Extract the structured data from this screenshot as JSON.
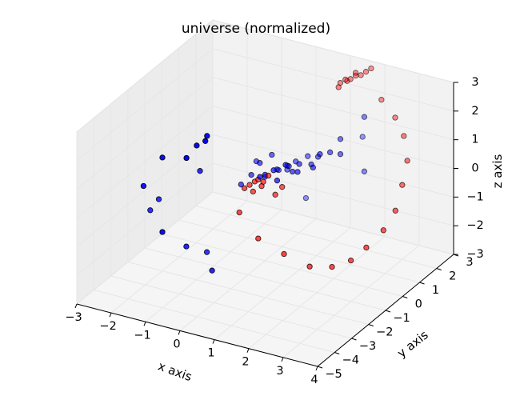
{
  "chart_data": {
    "type": "scatter",
    "projection": "3d",
    "title": "universe (normalized)",
    "xlabel": "x axis",
    "ylabel": "y axis",
    "zlabel": "z axis",
    "xlim": [
      -3,
      4
    ],
    "ylim": [
      -5,
      3
    ],
    "zlim": [
      -3,
      3
    ],
    "xticks": [
      "−3",
      "−2",
      "−1",
      "0",
      "1",
      "2",
      "3",
      "4"
    ],
    "yticks": [
      "−5",
      "−4",
      "−3",
      "−2",
      "−1",
      "0",
      "1",
      "2",
      "3"
    ],
    "zticks": [
      "−3",
      "−2",
      "−1",
      "0",
      "1",
      "2",
      "3"
    ],
    "grid": true,
    "series": [
      {
        "color": "#0000ff",
        "points": [
          [
            0.0,
            0.0,
            0.0
          ],
          [
            0.2,
            0.3,
            0.1
          ],
          [
            -0.1,
            0.2,
            -0.2
          ],
          [
            0.3,
            -0.1,
            0.3
          ],
          [
            0.4,
            0.5,
            0.2
          ],
          [
            0.1,
            0.6,
            -0.1
          ],
          [
            0.5,
            0.2,
            0.4
          ],
          [
            -0.2,
            0.1,
            0.3
          ],
          [
            0.6,
            0.4,
            0.1
          ],
          [
            0.3,
            0.8,
            0.0
          ],
          [
            0.7,
            0.6,
            0.3
          ],
          [
            0.0,
            0.4,
            0.5
          ],
          [
            0.8,
            0.3,
            0.2
          ],
          [
            -0.3,
            -0.2,
            0.0
          ],
          [
            0.4,
            1.0,
            0.1
          ],
          [
            0.9,
            0.9,
            0.2
          ],
          [
            0.2,
            0.9,
            -0.2
          ],
          [
            1.0,
            1.1,
            0.4
          ],
          [
            0.5,
            -0.3,
            0.1
          ],
          [
            -0.4,
            0.3,
            0.2
          ],
          [
            1.1,
            0.6,
            0.3
          ],
          [
            0.6,
            1.3,
            0.2
          ],
          [
            1.3,
            1.2,
            0.6
          ],
          [
            1.2,
            0.8,
            0.7
          ],
          [
            1.5,
            1.4,
            0.5
          ],
          [
            1.4,
            1.6,
            0.9
          ],
          [
            0.1,
            -0.5,
            0.2
          ],
          [
            -0.5,
            -0.4,
            -0.3
          ],
          [
            -1.5,
            -3.0,
            -1.0
          ],
          [
            -1.2,
            -2.2,
            -1.8
          ],
          [
            -0.9,
            -1.6,
            -2.2
          ],
          [
            -0.6,
            -1.9,
            -2.6
          ],
          [
            0.3,
            1.8,
            -1.6
          ],
          [
            1.8,
            2.2,
            -0.4
          ],
          [
            1.6,
            2.5,
            0.6
          ],
          [
            1.8,
            2.2,
            1.5
          ],
          [
            -0.8,
            -3.0,
            1.8
          ],
          [
            -0.6,
            -2.8,
            2.2
          ],
          [
            -0.4,
            -2.6,
            2.5
          ],
          [
            -0.3,
            -2.9,
            2.5
          ],
          [
            -2.2,
            -2.3,
            -0.8
          ],
          [
            -2.0,
            -2.2,
            -0.4
          ],
          [
            -2.0,
            -3.1,
            0.5
          ],
          [
            -1.5,
            -3.0,
            1.6
          ],
          [
            -1.0,
            -1.8,
            0.7
          ]
        ]
      },
      {
        "color": "#ff0000",
        "points": [
          [
            -0.4,
            -0.4,
            -0.4
          ],
          [
            -0.3,
            -0.3,
            -0.3
          ],
          [
            -0.2,
            -0.2,
            -0.2
          ],
          [
            -0.1,
            -0.2,
            -0.1
          ],
          [
            0.0,
            -0.1,
            -0.2
          ],
          [
            0.1,
            0.0,
            0.0
          ],
          [
            -0.2,
            -0.3,
            -0.5
          ],
          [
            0.0,
            -0.2,
            -0.3
          ],
          [
            0.4,
            0.2,
            -0.4
          ],
          [
            0.3,
            0.0,
            -0.6
          ],
          [
            1.2,
            2.0,
            2.6
          ],
          [
            1.3,
            2.1,
            2.7
          ],
          [
            1.4,
            2.2,
            2.7
          ],
          [
            1.5,
            2.3,
            2.8
          ],
          [
            1.6,
            2.4,
            2.8
          ],
          [
            1.7,
            2.5,
            2.9
          ],
          [
            1.2,
            1.9,
            2.5
          ],
          [
            1.3,
            2.2,
            2.6
          ],
          [
            1.5,
            2.3,
            2.9
          ],
          [
            1.8,
            2.6,
            3.0
          ],
          [
            2.1,
            2.6,
            2.0
          ],
          [
            2.5,
            2.6,
            1.5
          ],
          [
            2.8,
            2.5,
            1.0
          ],
          [
            3.0,
            2.3,
            0.3
          ],
          [
            3.0,
            2.0,
            -0.4
          ],
          [
            3.0,
            1.6,
            -1.1
          ],
          [
            2.8,
            1.3,
            -1.7
          ],
          [
            2.5,
            0.9,
            -2.2
          ],
          [
            2.2,
            0.6,
            -2.6
          ],
          [
            1.8,
            0.3,
            -2.8
          ],
          [
            1.3,
            0.0,
            -2.8
          ],
          [
            0.7,
            -0.3,
            -2.4
          ],
          [
            0.1,
            -0.6,
            -1.9
          ],
          [
            -0.4,
            -0.7,
            -1.1
          ]
        ]
      }
    ]
  }
}
